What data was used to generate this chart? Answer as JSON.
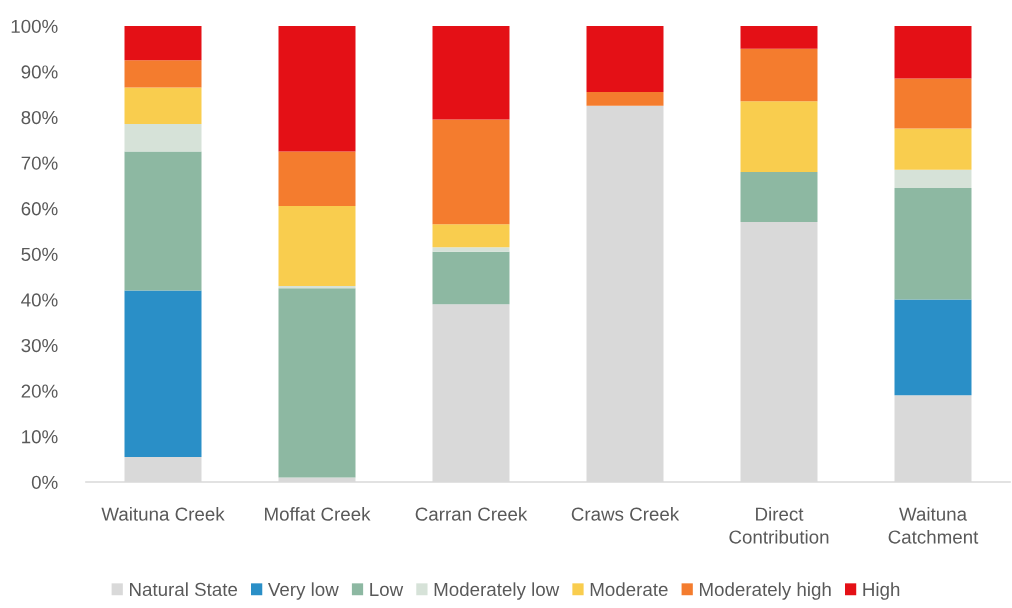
{
  "chart_data": {
    "type": "bar",
    "stacked": true,
    "categories": [
      "Waituna Creek",
      "Moffat Creek",
      "Carran Creek",
      "Craws Creek",
      "Direct\nContribution",
      "Waituna\nCatchment"
    ],
    "series": [
      {
        "name": "Natural State",
        "color": "#d9d9d9",
        "values": [
          5.5,
          1,
          39,
          82.5,
          57,
          19
        ]
      },
      {
        "name": "Very low",
        "color": "#2a8fc7",
        "values": [
          36.5,
          null,
          null,
          null,
          null,
          21
        ]
      },
      {
        "name": "Low",
        "color": "#8db8a2",
        "values": [
          30.5,
          41.5,
          11.5,
          null,
          11,
          24.5
        ]
      },
      {
        "name": "Moderately low",
        "color": "#d6e2d8",
        "values": [
          6,
          0.5,
          1,
          null,
          null,
          4
        ]
      },
      {
        "name": "Moderate",
        "color": "#f9cd4e",
        "values": [
          8,
          17.5,
          5,
          null,
          15.5,
          9
        ]
      },
      {
        "name": "Moderately high",
        "color": "#f47c2e",
        "values": [
          6,
          12,
          23,
          3,
          11.5,
          11
        ]
      },
      {
        "name": "High",
        "color": "#e41016",
        "values": [
          7.5,
          27.5,
          20.5,
          14.5,
          5,
          11.5
        ]
      }
    ],
    "ylim": [
      0,
      100
    ],
    "yticks": [
      {
        "value": 0,
        "label": "0%"
      },
      {
        "value": 10,
        "label": "10%"
      },
      {
        "value": 20,
        "label": "20%"
      },
      {
        "value": 30,
        "label": "30%"
      },
      {
        "value": 40,
        "label": "40%"
      },
      {
        "value": 50,
        "label": "50%"
      },
      {
        "value": 60,
        "label": "60%"
      },
      {
        "value": 70,
        "label": "70%"
      },
      {
        "value": 80,
        "label": "80%"
      },
      {
        "value": 90,
        "label": "90%"
      },
      {
        "value": 100,
        "label": "100%"
      }
    ],
    "legend": "bottom"
  }
}
